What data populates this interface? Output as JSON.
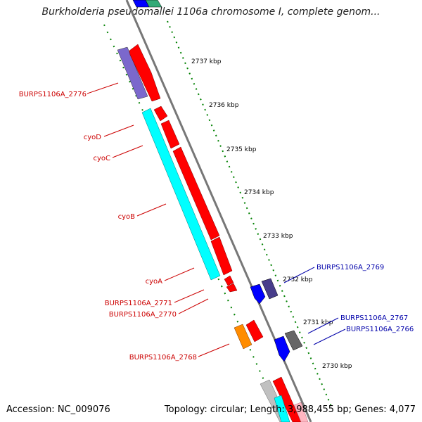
{
  "header": {
    "title": "Burkholderia pseudomallei 1106a chromosome I, complete genom..."
  },
  "footer": {
    "accession": "Accession: NC_009076",
    "summary": "Topology: circular; Length: 3,988,455 bp; Genes: 4,077"
  },
  "map": {
    "ticks": [
      "2737 kbp",
      "2736 kbp",
      "2735 kbp",
      "2734 kbp",
      "2733 kbp",
      "2732 kbp",
      "2731 kbp",
      "2730 kbp"
    ],
    "gene_labels": {
      "burps_2776": "BURPS1106A_2776",
      "cyoD": "cyoD",
      "cyoC": "cyoC",
      "cyoB": "cyoB",
      "cyoA": "cyoA",
      "burps_2771": "BURPS1106A_2771",
      "burps_2770": "BURPS1106A_2770",
      "burps_2768": "BURPS1106A_2768",
      "burps_2769": "BURPS1106A_2769",
      "burps_2767": "BURPS1106A_2767",
      "burps_2766": "BURPS1106A_2766"
    },
    "colors": {
      "backbone": "#777777",
      "cog_red": "#ff0000",
      "cog_cyan": "#00ffff",
      "cog_purple": "#7b68cc",
      "cog_blue": "#0000ff",
      "cog_darkpurple": "#483d8b",
      "cog_orange": "#ff8c00",
      "cog_gray": "#666666",
      "cog_lightgray": "#c0c0c0",
      "cog_pink": "#ffb6c1",
      "dotted_green": "#008000",
      "label_red": "#cc0000",
      "label_blue": "#0000aa"
    }
  }
}
